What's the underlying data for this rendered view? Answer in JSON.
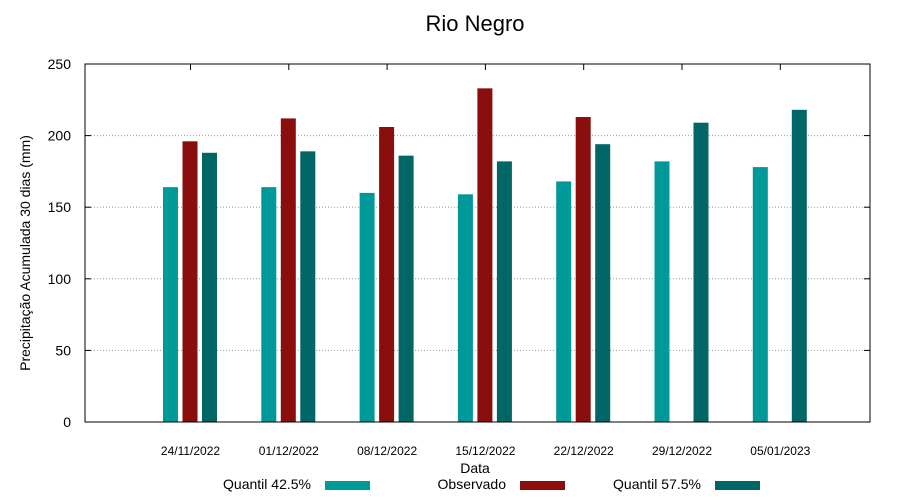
{
  "chart_data": {
    "type": "bar",
    "title": "Rio Negro",
    "xlabel": "Data",
    "ylabel": "Precipitação Acumulada 30 dias (mm)",
    "ylim": [
      0,
      250
    ],
    "yticks": [
      "0",
      "50",
      "100",
      "150",
      "200",
      "250"
    ],
    "grid": true,
    "legend_position": "bottom",
    "categories": [
      "24/11/2022",
      "01/12/2022",
      "08/12/2022",
      "15/12/2022",
      "22/12/2022",
      "29/12/2022",
      "05/01/2023"
    ],
    "series": [
      {
        "name": "Quantil 42.5%",
        "color": "#009999",
        "values": [
          164,
          164,
          160,
          159,
          168,
          182,
          178
        ]
      },
      {
        "name": "Observado",
        "color": "#8b0e0e",
        "values": [
          196,
          212,
          206,
          233,
          213,
          null,
          null
        ]
      },
      {
        "name": "Quantil 57.5%",
        "color": "#006666",
        "values": [
          188,
          189,
          186,
          182,
          194,
          209,
          218
        ]
      }
    ]
  }
}
